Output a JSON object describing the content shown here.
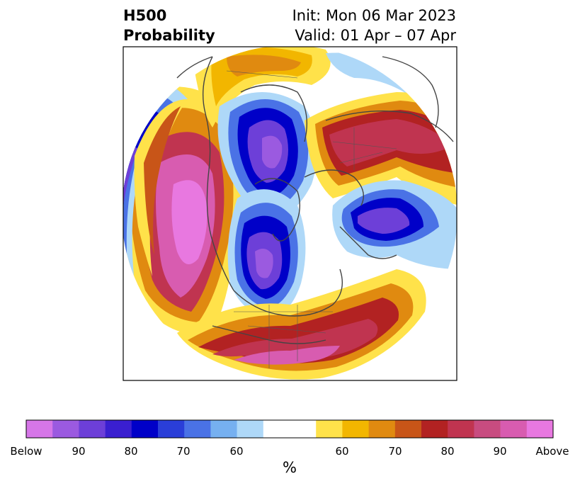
{
  "header": {
    "variable": "H500",
    "product": "Probability",
    "init": "Init: Mon 06 Mar 2023",
    "valid": "Valid: 01 Apr – 07 Apr"
  },
  "colorbar": {
    "unit": "%",
    "tick_labels": [
      "Below",
      "90",
      "80",
      "70",
      "60",
      "60",
      "70",
      "80",
      "90",
      "Above"
    ],
    "colors": [
      "#d676e8",
      "#9b5ae0",
      "#6d3fd8",
      "#3a1fd0",
      "#0000c8",
      "#2a3ed8",
      "#4a72e6",
      "#76b0f0",
      "#aed8f8",
      "#ffffff",
      "#ffe24a",
      "#f2b600",
      "#e08a10",
      "#c85518",
      "#b22222",
      "#c03450",
      "#c84c80",
      "#d85cb0",
      "#e878e0"
    ]
  },
  "map": {
    "projection": "north polar stereographic",
    "field": "500 hPa height probability",
    "palette": {
      "above_light": "#ffe24a",
      "above_gold": "#f2b600",
      "above_orange": "#e08a10",
      "above_brown": "#c85518",
      "above_red": "#b22222",
      "above_rose": "#c03450",
      "above_pink": "#c84c80",
      "above_magenta": "#d85cb0",
      "above_max": "#e878e0",
      "below_light": "#aed8f8",
      "below_sky": "#76b0f0",
      "below_blue": "#4a72e6",
      "below_royal": "#2a3ed8",
      "below_navy": "#0000c8",
      "below_indigo": "#3a1fd0",
      "below_violet": "#6d3fd8",
      "below_purple": "#9b5ae0",
      "below_max": "#d676e8",
      "coastline": "#444444"
    }
  }
}
